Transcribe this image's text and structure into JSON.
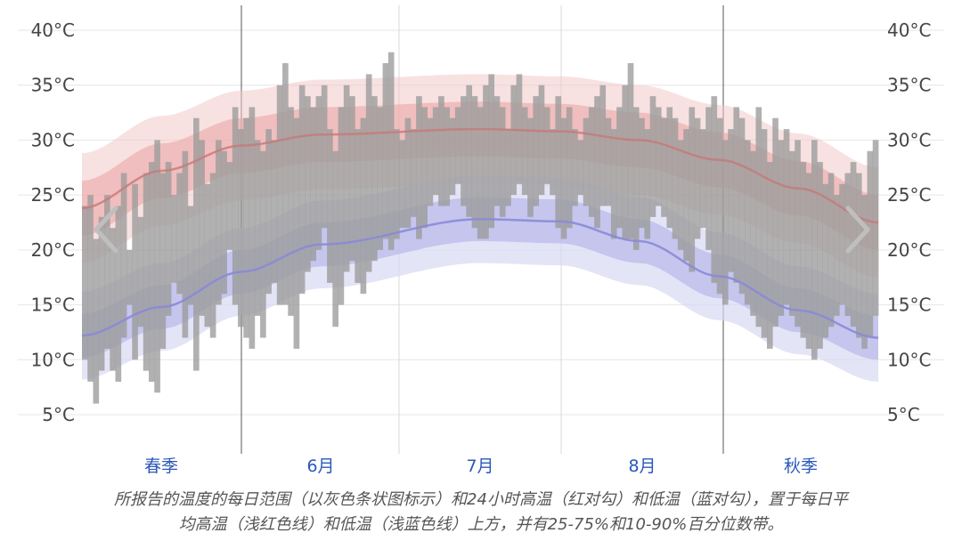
{
  "chart_data": {
    "type": "bar",
    "title": "",
    "xlabel": "",
    "ylabel": "",
    "ylim": [
      2,
      42
    ],
    "y_ticks": [
      "5°C",
      "10°C",
      "15°C",
      "20°C",
      "25°C",
      "30°C",
      "35°C",
      "40°C"
    ],
    "y_tick_values": [
      5,
      10,
      15,
      20,
      25,
      30,
      35,
      40
    ],
    "x_periods": [
      "春季",
      "6月",
      "7月",
      "8月",
      "秋季"
    ],
    "grid": true,
    "series": [
      {
        "name": "24小时高温"
      },
      {
        "name": "24小时低温"
      },
      {
        "name": "每日平均高温"
      },
      {
        "name": "每日平均低温"
      }
    ],
    "avg_high_keypoints": [
      [
        0,
        23.8
      ],
      [
        0.1,
        27.2
      ],
      [
        0.2,
        29.5
      ],
      [
        0.3,
        30.5
      ],
      [
        0.5,
        31.0
      ],
      [
        0.6,
        30.8
      ],
      [
        0.7,
        30.0
      ],
      [
        0.8,
        28.2
      ],
      [
        0.9,
        25.6
      ],
      [
        1.0,
        22.5
      ]
    ],
    "avg_low_keypoints": [
      [
        0,
        12.2
      ],
      [
        0.1,
        14.8
      ],
      [
        0.2,
        18.0
      ],
      [
        0.3,
        20.5
      ],
      [
        0.5,
        22.8
      ],
      [
        0.6,
        22.6
      ],
      [
        0.7,
        20.8
      ],
      [
        0.8,
        17.6
      ],
      [
        0.9,
        14.5
      ],
      [
        1.0,
        12.0
      ]
    ],
    "daily_high": [
      24,
      25,
      21,
      23,
      25,
      22,
      24,
      27,
      20,
      26,
      23,
      27,
      28,
      30,
      27,
      28,
      25,
      27,
      29,
      24,
      32,
      30,
      26,
      27,
      30,
      29,
      28,
      33,
      31,
      32,
      33,
      30,
      29,
      31,
      30,
      35,
      37,
      33,
      32,
      35,
      34,
      33,
      34,
      35,
      31,
      29,
      33,
      35,
      34,
      31,
      32,
      36,
      34,
      33,
      37,
      38,
      31,
      30,
      32,
      31,
      34,
      33,
      32,
      33,
      34,
      33,
      32,
      33,
      34,
      35,
      34,
      33,
      35,
      36,
      34,
      33,
      31,
      35,
      36,
      33,
      32,
      34,
      35,
      33,
      31,
      34,
      32,
      33,
      31,
      30,
      32,
      33,
      34,
      35,
      32,
      31,
      33,
      35,
      37,
      33,
      32,
      31,
      34,
      33,
      32,
      33,
      32,
      30,
      31,
      33,
      32,
      31,
      33,
      34,
      32,
      30,
      31,
      33,
      32,
      30,
      29,
      33,
      31,
      28,
      32,
      30,
      31,
      29,
      30,
      28,
      27,
      30,
      28,
      26,
      27,
      25,
      26,
      27,
      28,
      27,
      25,
      29,
      30
    ],
    "daily_low": [
      10,
      8,
      6,
      9,
      11,
      9,
      8,
      12,
      15,
      10,
      13,
      9,
      8,
      7,
      11,
      14,
      17,
      16,
      12,
      15,
      9,
      14,
      13,
      12,
      15,
      16,
      20,
      15,
      13,
      12,
      11,
      14,
      12,
      16,
      17,
      15,
      15,
      14,
      11,
      16,
      18,
      19,
      20,
      22,
      17,
      13,
      15,
      18,
      19,
      17,
      16,
      18,
      19,
      20,
      21,
      20,
      21,
      22,
      22,
      23,
      21,
      22,
      24,
      25,
      24,
      24,
      25,
      26,
      24,
      23,
      22,
      21,
      21,
      22,
      24,
      23,
      24,
      25,
      26,
      25,
      23,
      24,
      25,
      26,
      25,
      22,
      21,
      22,
      24,
      25,
      24,
      23,
      22,
      24,
      24,
      21,
      22,
      21,
      21,
      20,
      22,
      21,
      23,
      24,
      23,
      22,
      21,
      20,
      19,
      18,
      21,
      22,
      20,
      17,
      16,
      15,
      18,
      17,
      16,
      15,
      14,
      13,
      12,
      11,
      13,
      14,
      15,
      14,
      13,
      12,
      11,
      10,
      11,
      12,
      13,
      14,
      15,
      14,
      13,
      12,
      11,
      12,
      14
    ]
  },
  "caption": {
    "line1": "所报告的温度的每日范围（以灰色条状图标示）和24小时高温（红对勾）和低温（蓝对勾），置于每日平",
    "line2": "均高温（浅红色线）和低温（浅蓝色线）上方，并有25-75%和10-90%百分位数带。"
  },
  "colors": {
    "bar": "#9b9b9b",
    "high_band_outer": "#f3c9c9",
    "high_band_inner": "#e9a3a3",
    "high_line": "#c57878",
    "low_band_outer": "#d8d8f3",
    "low_band_inner": "#b8b8ea",
    "low_line": "#8a8ad6",
    "grid": "#e6e6e6",
    "month_divider": "#555555",
    "week_divider": "#d8d8d8",
    "month_label": "#2b58b8"
  },
  "icons": {
    "prev": "chevron-left-icon",
    "next": "chevron-right-icon"
  }
}
